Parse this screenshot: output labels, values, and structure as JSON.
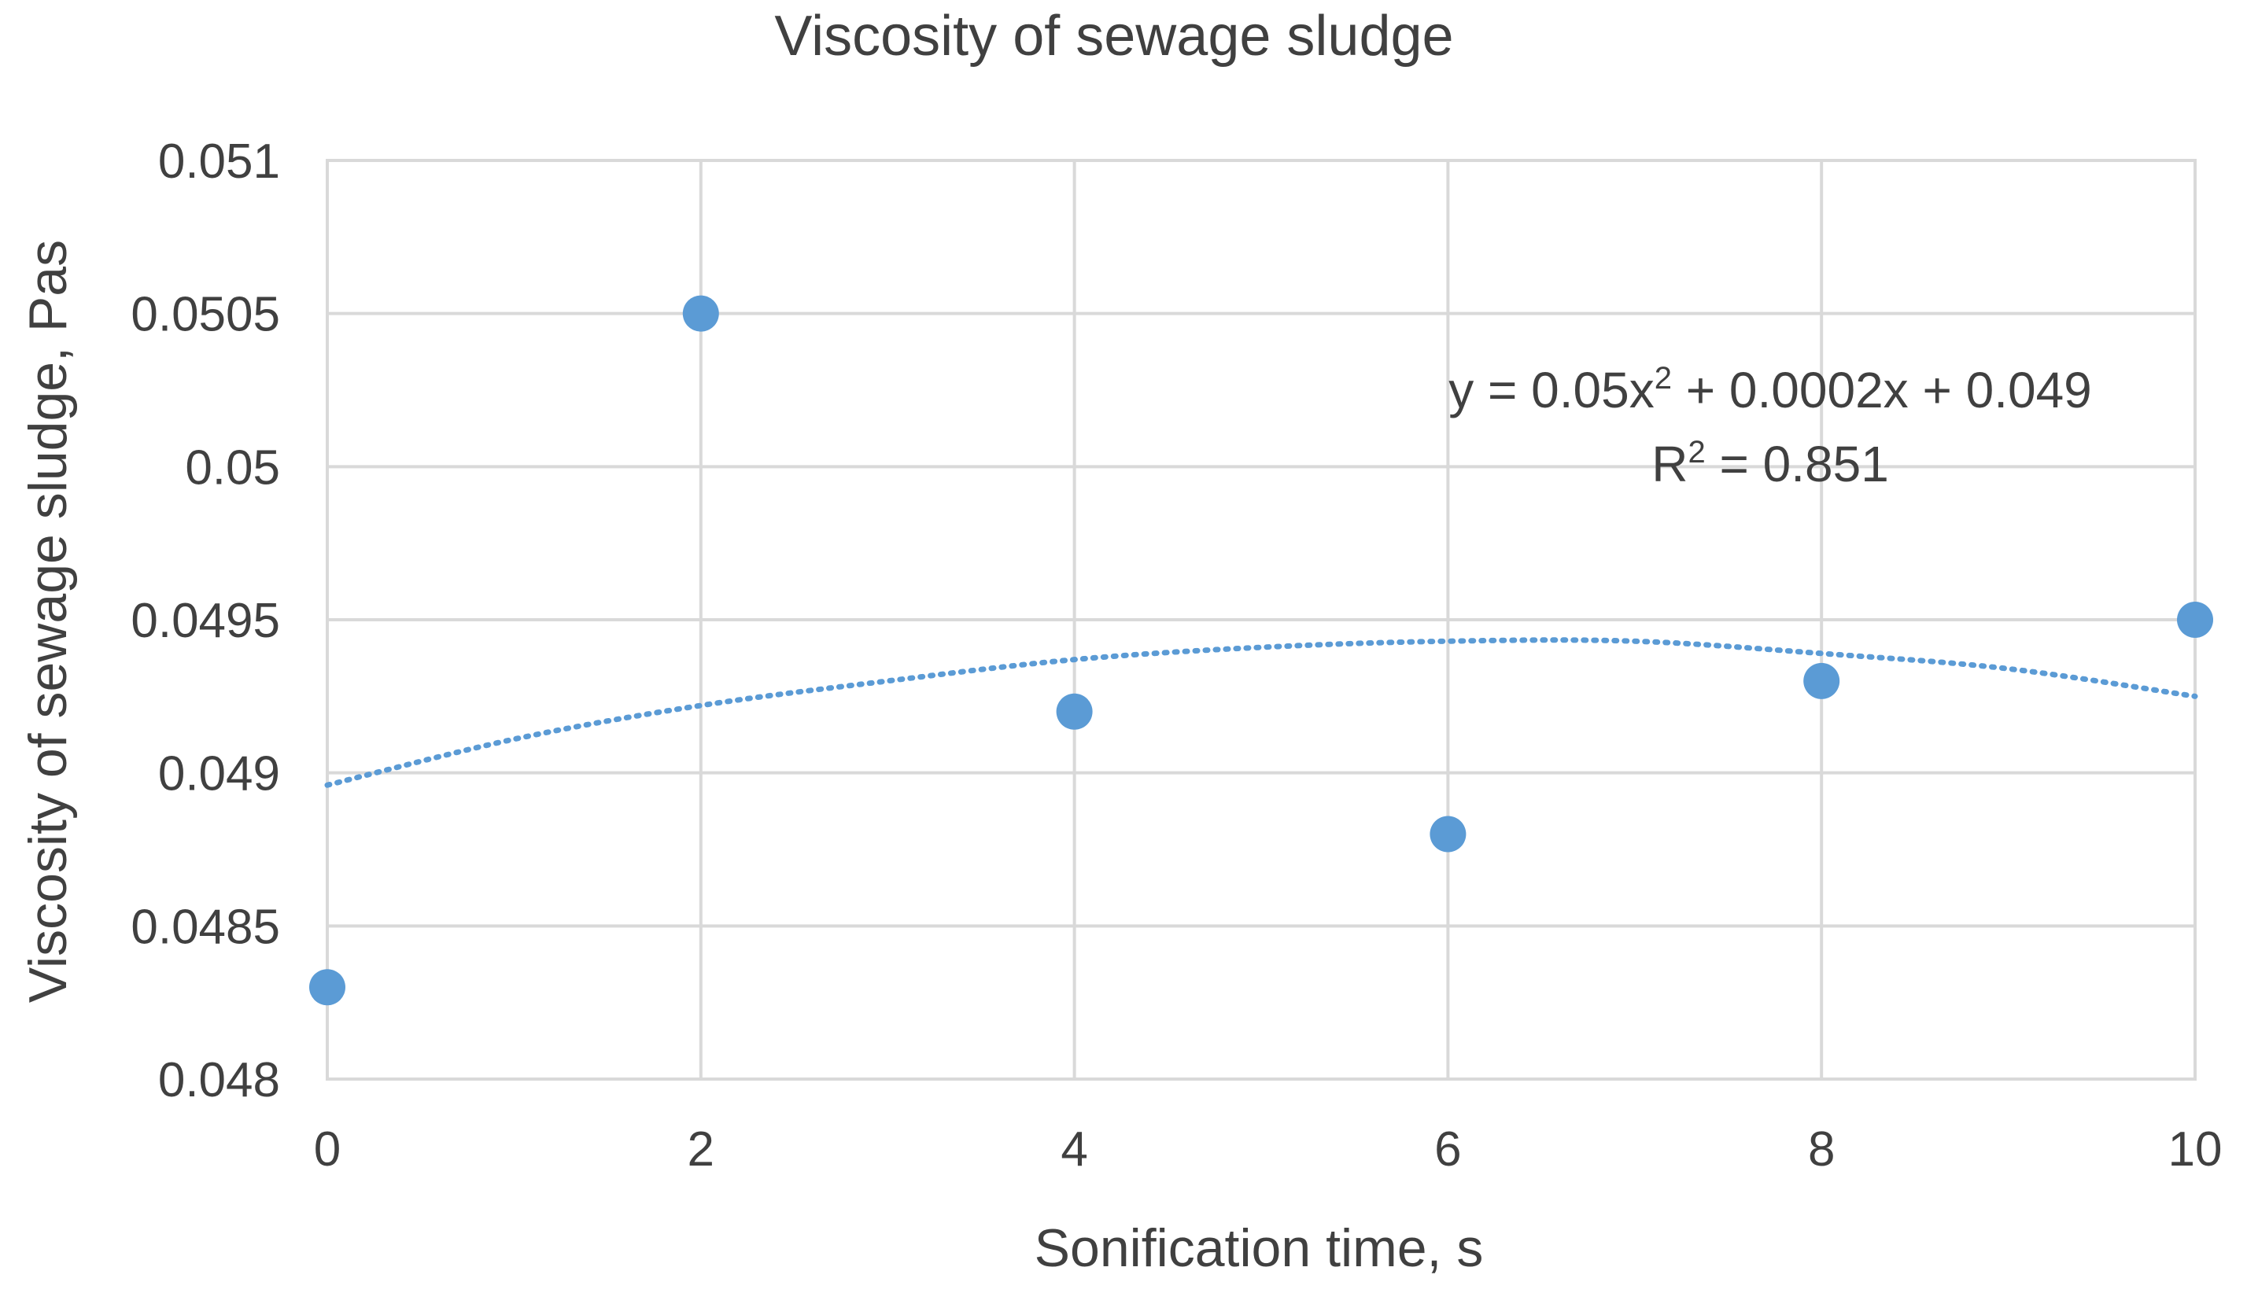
{
  "chart_data": {
    "type": "scatter",
    "title": "Viscosity of sewage sludge",
    "xlabel": "Sonification time, s",
    "ylabel": "Viscosity of sewage sludge, Pas",
    "xlim": [
      0,
      10
    ],
    "ylim": [
      0.048,
      0.051
    ],
    "x_ticks": [
      0,
      2,
      4,
      6,
      8,
      10
    ],
    "x_tick_labels": [
      "0",
      "2",
      "4",
      "6",
      "8",
      "10"
    ],
    "y_ticks": [
      0.048,
      0.0485,
      0.049,
      0.0495,
      0.05,
      0.0505,
      0.051
    ],
    "y_tick_labels": [
      "0.048",
      "0.0485",
      "0.049",
      "0.0495",
      "0.05",
      "0.0505",
      "0.051"
    ],
    "grid": true,
    "legend": "none",
    "series": [
      {
        "name": "Viscosity",
        "x": [
          0,
          2,
          4,
          6,
          8,
          10
        ],
        "y": [
          0.0483,
          0.0505,
          0.0492,
          0.0488,
          0.0493,
          0.0495
        ]
      }
    ],
    "trendline": {
      "type": "polynomial",
      "order": 2,
      "style": "dotted",
      "points_x": [
        0,
        1,
        2,
        3,
        4,
        5,
        6,
        7,
        8,
        9,
        10
      ],
      "points_y": [
        0.04896,
        0.04911,
        0.04922,
        0.0493,
        0.04937,
        0.04941,
        0.04943,
        0.04943,
        0.04939,
        0.04934,
        0.04925
      ],
      "equation_main": "y = 0.05x",
      "equation_exp": "2",
      "equation_rest": " + 0.0002x + 0.049",
      "r2_label": "R",
      "r2_exp": "2",
      "r2_value": " = 0.851"
    },
    "colors": {
      "marker": "#5b9bd5",
      "trendline": "#5b9bd5",
      "grid": "#d9d9d9",
      "text": "#404040"
    }
  }
}
